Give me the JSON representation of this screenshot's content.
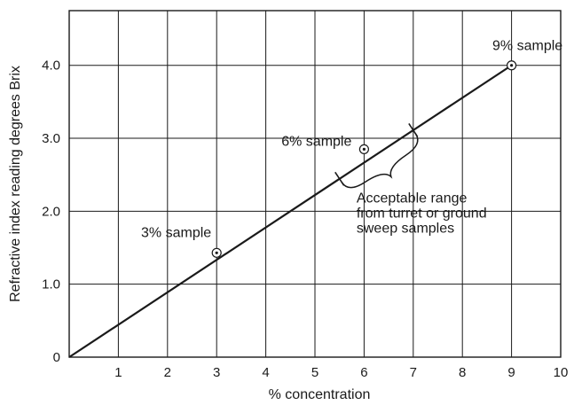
{
  "chart_data": {
    "type": "line",
    "title": "",
    "xlabel": "% concentration",
    "ylabel": "Refractive index reading degrees Brix",
    "xlim": [
      0,
      10
    ],
    "ylim": [
      0,
      4.75
    ],
    "grid": true,
    "x_ticks": [
      {
        "value": 1,
        "label": "1"
      },
      {
        "value": 2,
        "label": "2"
      },
      {
        "value": 3,
        "label": "3"
      },
      {
        "value": 4,
        "label": "4"
      },
      {
        "value": 5,
        "label": "5"
      },
      {
        "value": 6,
        "label": "6"
      },
      {
        "value": 7,
        "label": "7"
      },
      {
        "value": 8,
        "label": "8"
      },
      {
        "value": 9,
        "label": "9"
      },
      {
        "value": 10,
        "label": "10"
      }
    ],
    "x_origin_label": "0",
    "y_ticks": [
      {
        "value": 1,
        "label": "1.0"
      },
      {
        "value": 2,
        "label": "2.0"
      },
      {
        "value": 3,
        "label": "3.0"
      },
      {
        "value": 4,
        "label": "4.0"
      }
    ],
    "series": [
      {
        "x": [
          0,
          9
        ],
        "y": [
          0,
          4.0
        ],
        "color": "#1a1a1a"
      }
    ],
    "samples": [
      {
        "label": "3% sample",
        "x": 3,
        "y": 1.43
      },
      {
        "label": "6% sample",
        "x": 6,
        "y": 2.85
      },
      {
        "label": "9% sample",
        "x": 9,
        "y": 4.0
      }
    ],
    "acceptable_range": {
      "x_from": 5.5,
      "x_to": 7.0,
      "label_lines": [
        "Acceptable range",
        "from turret or ground",
        "sweep samples"
      ]
    }
  }
}
